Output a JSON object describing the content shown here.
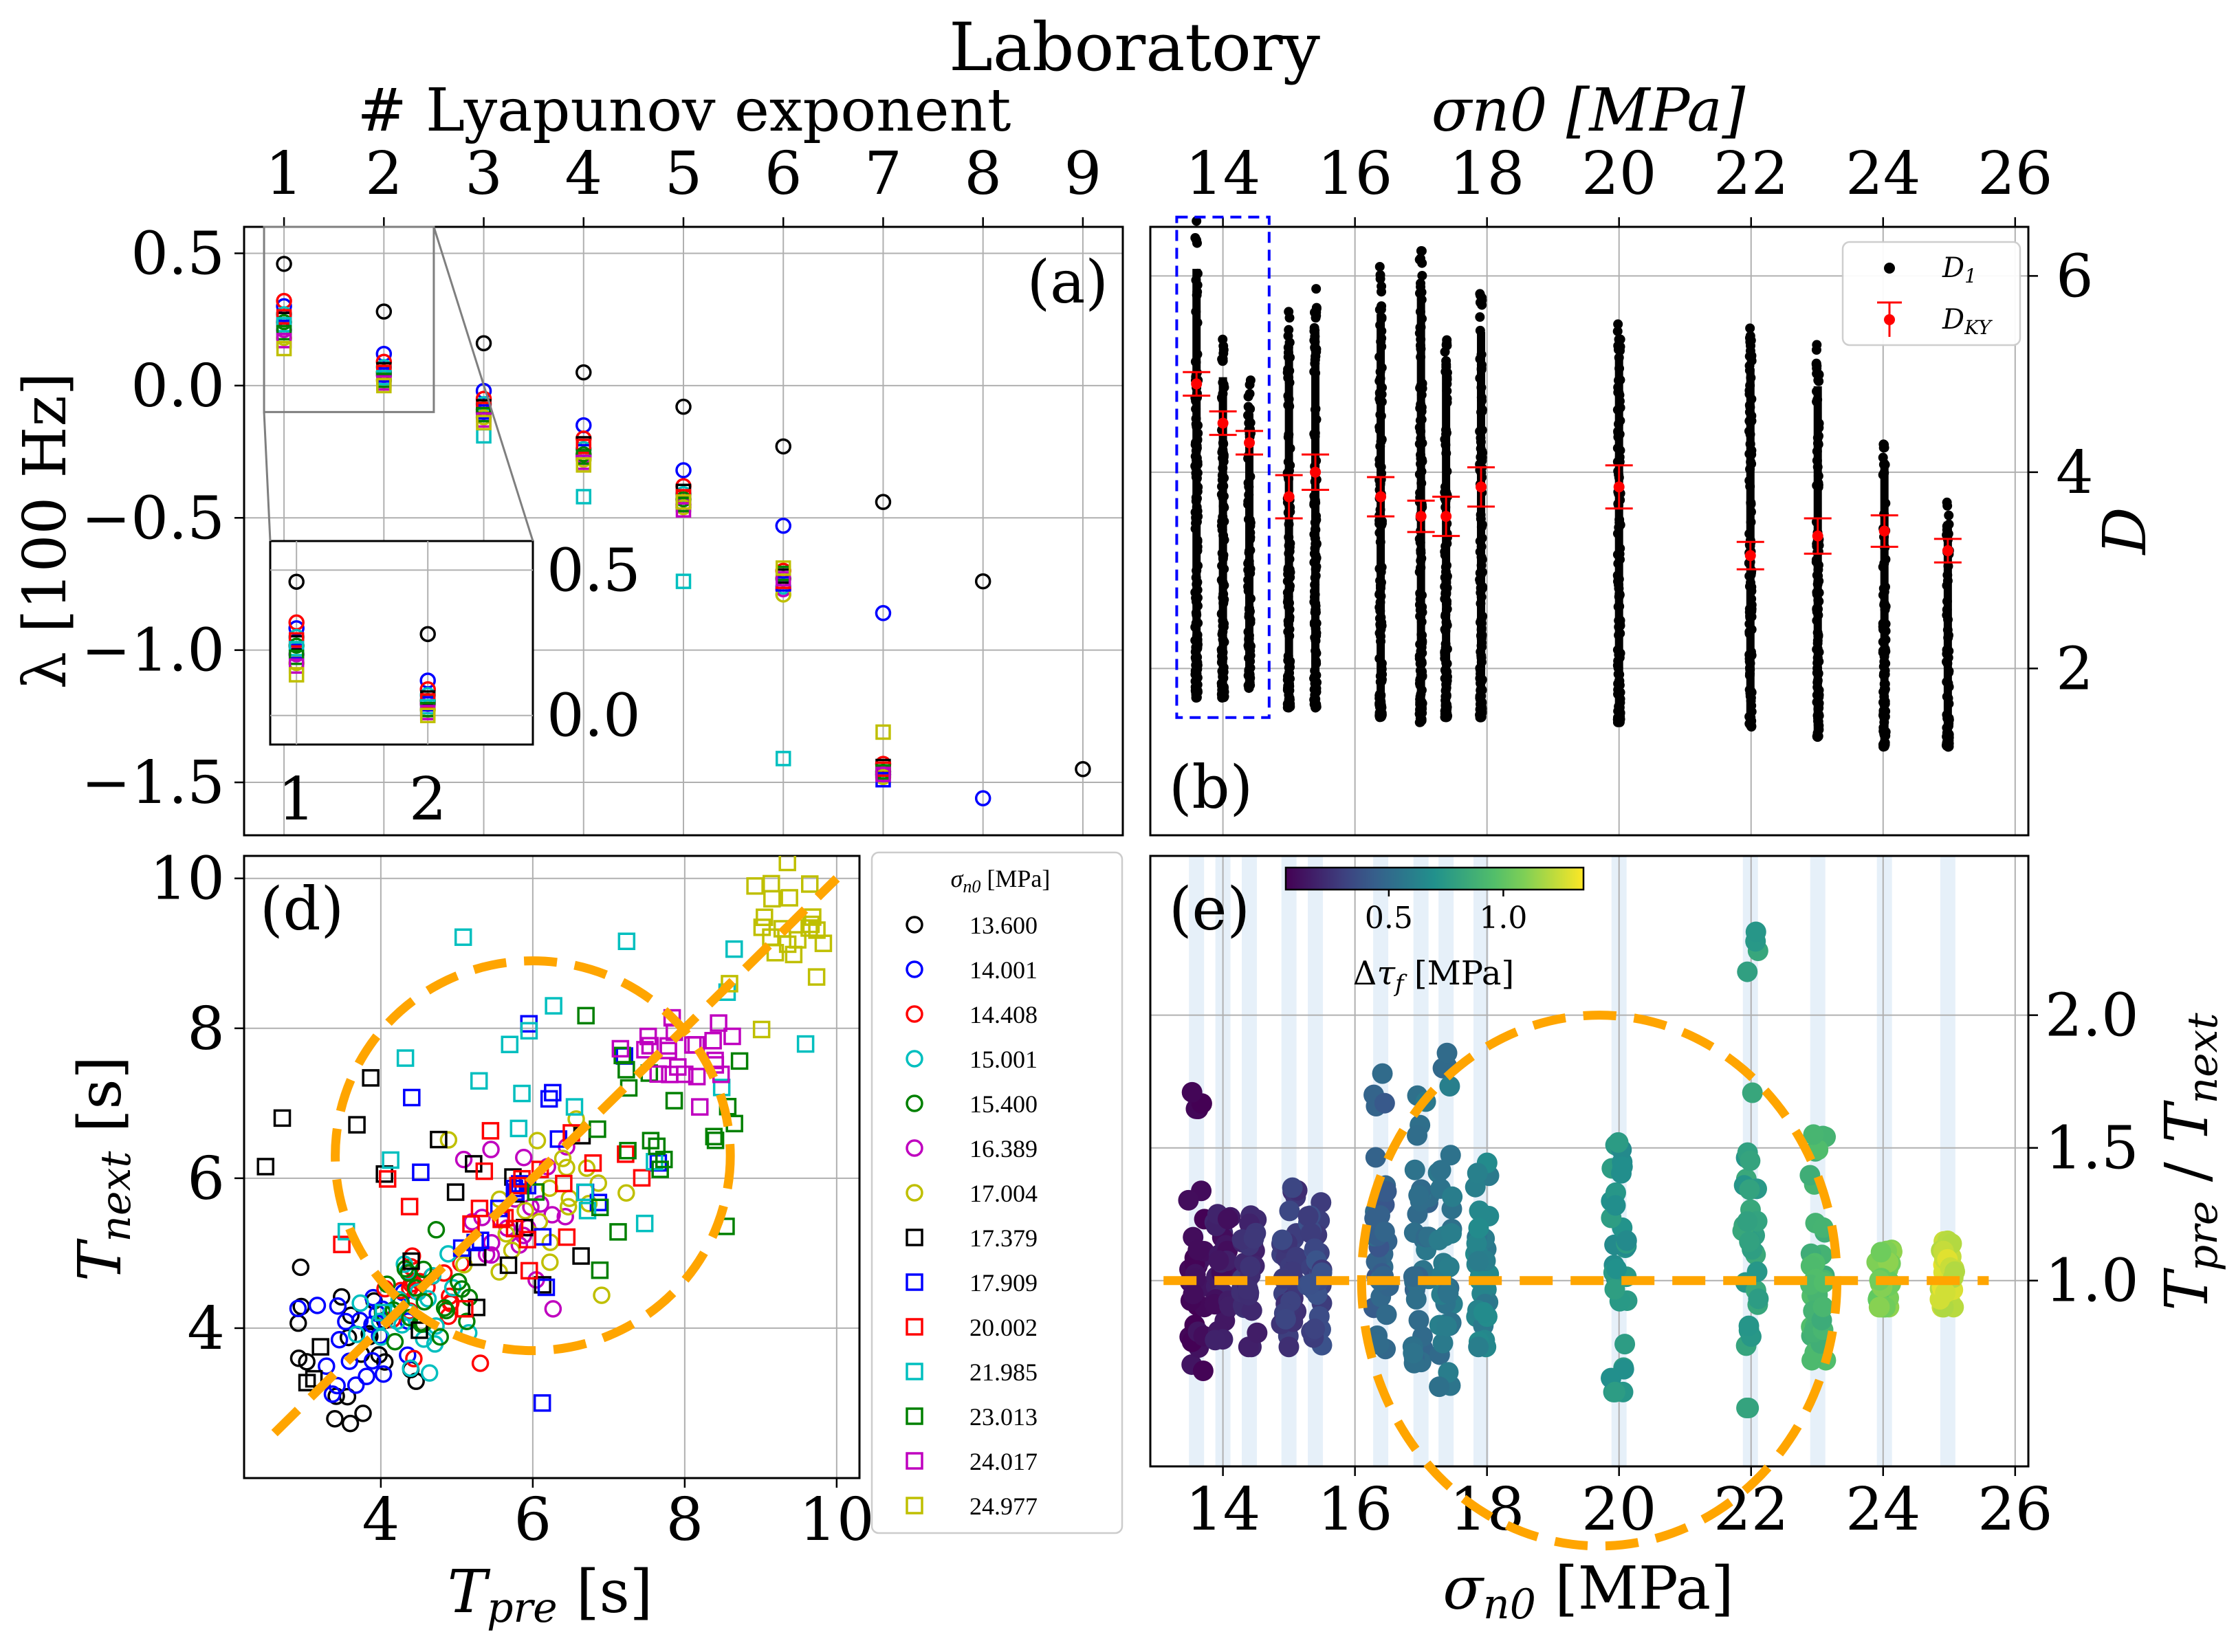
{
  "title": "Laboratory",
  "chart_data": [
    {
      "panel": "(a)",
      "type": "scatter",
      "xlabel": "# Lyapunov exponent",
      "ylabel": "λ [100 Hz]",
      "xticks": [
        "1",
        "2",
        "3",
        "4",
        "5",
        "6",
        "7",
        "8",
        "9"
      ],
      "yticks": [
        "0.5",
        "0.0",
        "−0.5",
        "−1.0",
        "−1.5"
      ],
      "xlim": [
        0.6,
        9.4
      ],
      "ylim": [
        -1.7,
        0.6
      ],
      "grid": true,
      "series": [
        {
          "marker": "circle",
          "color": "#000000",
          "values": [
            0.46,
            0.28,
            0.16,
            0.05,
            -0.08,
            -0.23,
            -0.44,
            -0.74,
            -1.45
          ]
        },
        {
          "marker": "circle",
          "color": "#0000ff",
          "values": [
            0.3,
            0.12,
            -0.02,
            -0.15,
            -0.32,
            -0.53,
            -0.86,
            -1.56
          ]
        },
        {
          "marker": "circle",
          "color": "#ff0000",
          "values": [
            0.32,
            0.09,
            -0.05,
            -0.2,
            -0.38,
            -0.7,
            -1.43
          ]
        },
        {
          "marker": "circle",
          "color": "#00bfbf",
          "values": [
            0.27,
            0.07,
            -0.07,
            -0.24,
            -0.41,
            -0.76,
            -1.47
          ]
        },
        {
          "marker": "circle",
          "color": "#008000",
          "values": [
            0.24,
            0.05,
            -0.09,
            -0.26,
            -0.43,
            -0.73,
            -1.46
          ]
        },
        {
          "marker": "circle",
          "color": "#bf00bf",
          "values": [
            0.21,
            0.04,
            -0.1,
            -0.27,
            -0.45,
            -0.77,
            -1.47
          ]
        },
        {
          "marker": "circle",
          "color": "#bfbf00",
          "values": [
            0.18,
            0.02,
            -0.12,
            -0.28,
            -0.46,
            -0.79,
            -1.48
          ]
        },
        {
          "marker": "square",
          "color": "#000000",
          "values": [
            0.25,
            0.06,
            -0.08,
            -0.22,
            -0.4,
            -0.72,
            -1.44
          ]
        },
        {
          "marker": "square",
          "color": "#0000ff",
          "values": [
            0.22,
            0.04,
            -0.1,
            -0.25,
            -0.44,
            -0.75,
            -1.49
          ]
        },
        {
          "marker": "square",
          "color": "#ff0000",
          "values": [
            0.26,
            0.05,
            -0.09,
            -0.23,
            -0.42,
            -0.74,
            -1.45
          ]
        },
        {
          "marker": "square",
          "color": "#00bfbf",
          "values": [
            0.23,
            0.03,
            -0.19,
            -0.42,
            -0.74,
            -1.41
          ]
        },
        {
          "marker": "square",
          "color": "#008000",
          "values": [
            0.2,
            0.02,
            -0.11,
            -0.27,
            -0.45,
            -0.71,
            -1.46
          ]
        },
        {
          "marker": "square",
          "color": "#bf00bf",
          "values": [
            0.17,
            0.01,
            -0.13,
            -0.29,
            -0.47,
            -0.73,
            -1.47
          ]
        },
        {
          "marker": "square",
          "color": "#bfbf00",
          "values": [
            0.14,
            0.0,
            -0.14,
            -0.3,
            -0.44,
            -0.69,
            -1.31
          ]
        }
      ],
      "inset": {
        "xticks": [
          "1",
          "2"
        ],
        "yticks": [
          "0.5",
          "0.0"
        ],
        "xlim": [
          0.8,
          2.8
        ],
        "ylim": [
          -0.1,
          0.6
        ]
      },
      "label": "(a)"
    },
    {
      "panel": "(b)",
      "type": "scatter",
      "xlabel": "σn0 [MPa]",
      "ylabel": "D",
      "xticks": [
        "14",
        "16",
        "18",
        "20",
        "22",
        "24",
        "26"
      ],
      "yticks": [
        "2",
        "4",
        "6"
      ],
      "xlim": [
        12.9,
        26.2
      ],
      "ylim": [
        0.3,
        6.5
      ],
      "grid": true,
      "legend": {
        "placement": "top-right",
        "entries": [
          {
            "label": "D1",
            "style": "dot"
          },
          {
            "label": "DKY",
            "style": "errorbar"
          }
        ]
      },
      "D1_columns": [
        {
          "x": 13.6,
          "ymin": 1.7,
          "ymax": 6.6
        },
        {
          "x": 14.0,
          "ymin": 1.7,
          "ymax": 5.4
        },
        {
          "x": 14.4,
          "ymin": 1.8,
          "ymax": 5.0
        },
        {
          "x": 15.0,
          "ymin": 1.6,
          "ymax": 5.8
        },
        {
          "x": 15.4,
          "ymin": 1.6,
          "ymax": 5.9
        },
        {
          "x": 16.39,
          "ymin": 1.5,
          "ymax": 6.1
        },
        {
          "x": 17.0,
          "ymin": 1.45,
          "ymax": 6.3
        },
        {
          "x": 17.38,
          "ymin": 1.5,
          "ymax": 5.5
        },
        {
          "x": 17.91,
          "ymin": 1.5,
          "ymax": 5.9
        },
        {
          "x": 20.0,
          "ymin": 1.45,
          "ymax": 5.6
        },
        {
          "x": 21.99,
          "ymin": 1.4,
          "ymax": 5.5
        },
        {
          "x": 23.01,
          "ymin": 1.3,
          "ymax": 5.3
        },
        {
          "x": 24.02,
          "ymin": 1.2,
          "ymax": 4.4
        },
        {
          "x": 24.98,
          "ymin": 1.2,
          "ymax": 3.8
        }
      ],
      "DKY": [
        {
          "x": 13.6,
          "y": 4.9,
          "err": 0.12
        },
        {
          "x": 14.0,
          "y": 4.5,
          "err": 0.12
        },
        {
          "x": 14.4,
          "y": 4.3,
          "err": 0.12
        },
        {
          "x": 15.0,
          "y": 3.75,
          "err": 0.22
        },
        {
          "x": 15.4,
          "y": 4.0,
          "err": 0.18
        },
        {
          "x": 16.39,
          "y": 3.75,
          "err": 0.2
        },
        {
          "x": 17.0,
          "y": 3.55,
          "err": 0.16
        },
        {
          "x": 17.38,
          "y": 3.55,
          "err": 0.2
        },
        {
          "x": 17.91,
          "y": 3.85,
          "err": 0.2
        },
        {
          "x": 20.0,
          "y": 3.85,
          "err": 0.22
        },
        {
          "x": 21.99,
          "y": 3.15,
          "err": 0.14
        },
        {
          "x": 23.01,
          "y": 3.35,
          "err": 0.18
        },
        {
          "x": 24.02,
          "y": 3.4,
          "err": 0.16
        },
        {
          "x": 24.98,
          "y": 3.2,
          "err": 0.12
        }
      ],
      "highlight_box": {
        "x0": 13.3,
        "x1": 14.7,
        "y0": 1.5,
        "y1": 6.6
      },
      "label": "(b)"
    },
    {
      "panel": "(d)",
      "type": "scatter",
      "xlabel": "Tpre [s]",
      "ylabel": "Tnext [s]",
      "xticks": [
        "4",
        "6",
        "8",
        "10"
      ],
      "yticks": [
        "4",
        "6",
        "8",
        "10"
      ],
      "xlim": [
        2.2,
        10.3
      ],
      "ylim": [
        2.0,
        10.3
      ],
      "grid": true,
      "legend_title": "σn0 [MPa]",
      "legend": [
        {
          "label": "13.600",
          "marker": "circle",
          "color": "#000000",
          "cx": 3.6,
          "cy": 3.7,
          "sx": 0.45,
          "sy": 0.5
        },
        {
          "label": "14.001",
          "marker": "circle",
          "color": "#0000ff",
          "cx": 3.8,
          "cy": 3.8,
          "sx": 0.4,
          "sy": 0.35
        },
        {
          "label": "14.408",
          "marker": "circle",
          "color": "#ff0000",
          "cx": 4.5,
          "cy": 4.4,
          "sx": 0.4,
          "sy": 0.4
        },
        {
          "label": "15.001",
          "marker": "circle",
          "color": "#00bfbf",
          "cx": 4.3,
          "cy": 4.3,
          "sx": 0.4,
          "sy": 0.4
        },
        {
          "label": "15.400",
          "marker": "circle",
          "color": "#008000",
          "cx": 4.4,
          "cy": 4.4,
          "sx": 0.4,
          "sy": 0.4
        },
        {
          "label": "16.389",
          "marker": "circle",
          "color": "#bf00bf",
          "cx": 5.9,
          "cy": 5.6,
          "sx": 0.5,
          "sy": 0.6
        },
        {
          "label": "17.004",
          "marker": "circle",
          "color": "#bfbf00",
          "cx": 6.2,
          "cy": 5.5,
          "sx": 0.5,
          "sy": 0.6
        },
        {
          "label": "17.379",
          "marker": "square",
          "color": "#000000",
          "cx": 4.8,
          "cy": 5.6,
          "sx": 1.1,
          "sy": 1.2
        },
        {
          "label": "17.909",
          "marker": "square",
          "color": "#0000ff",
          "cx": 5.9,
          "cy": 5.7,
          "sx": 0.8,
          "sy": 0.9
        },
        {
          "label": "20.002",
          "marker": "square",
          "color": "#ff0000",
          "cx": 6.0,
          "cy": 5.8,
          "sx": 0.8,
          "sy": 0.9
        },
        {
          "label": "21.985",
          "marker": "square",
          "color": "#00bfbf",
          "cx": 6.0,
          "cy": 6.6,
          "sx": 1.6,
          "sy": 1.5
        },
        {
          "label": "23.013",
          "marker": "square",
          "color": "#008000",
          "cx": 7.3,
          "cy": 7.0,
          "sx": 0.9,
          "sy": 1.0
        },
        {
          "label": "24.017",
          "marker": "square",
          "color": "#bf00bf",
          "cx": 8.0,
          "cy": 7.8,
          "sx": 0.3,
          "sy": 0.3
        },
        {
          "label": "24.977",
          "marker": "square",
          "color": "#bfbf00",
          "cx": 9.3,
          "cy": 9.3,
          "sx": 0.35,
          "sy": 0.35
        }
      ],
      "annotations": {
        "line": "y = x (dashed orange)",
        "circle_center": [
          6.0,
          6.3
        ],
        "circle_radius": 2.6
      },
      "label": "(d)"
    },
    {
      "panel": "(e)",
      "type": "scatter",
      "xlabel": "σn0 [MPa]",
      "ylabel": "Tpre / Tnext",
      "xticks": [
        "14",
        "16",
        "18",
        "20",
        "22",
        "24",
        "26"
      ],
      "yticks": [
        "1.0",
        "1.5",
        "2.0"
      ],
      "xlim": [
        12.9,
        26.2
      ],
      "ylim": [
        0.3,
        2.6
      ],
      "grid": true,
      "colorbar": {
        "label": "Δτf [MPa]",
        "ticks": [
          "0.5",
          "1.0"
        ],
        "range": [
          0.05,
          1.35
        ],
        "colormap": "viridis"
      },
      "columns": [
        {
          "x": 13.6,
          "ymin": 0.66,
          "ymax": 1.73,
          "c": 0.08
        },
        {
          "x": 14.0,
          "ymin": 0.75,
          "ymax": 1.25,
          "c": 0.15
        },
        {
          "x": 14.4,
          "ymin": 0.75,
          "ymax": 1.25,
          "c": 0.22
        },
        {
          "x": 15.0,
          "ymin": 0.75,
          "ymax": 1.35,
          "c": 0.28
        },
        {
          "x": 15.4,
          "ymin": 0.75,
          "ymax": 1.3,
          "c": 0.33
        },
        {
          "x": 16.39,
          "ymin": 0.7,
          "ymax": 1.8,
          "c": 0.45
        },
        {
          "x": 17.0,
          "ymin": 0.62,
          "ymax": 1.7,
          "c": 0.52
        },
        {
          "x": 17.38,
          "ymin": 0.6,
          "ymax": 1.9,
          "c": 0.55
        },
        {
          "x": 17.91,
          "ymin": 0.75,
          "ymax": 1.45,
          "c": 0.62
        },
        {
          "x": 20.0,
          "ymin": 0.58,
          "ymax": 1.55,
          "c": 0.72
        },
        {
          "x": 21.99,
          "ymin": 0.52,
          "ymax": 2.45,
          "c": 0.78
        },
        {
          "x": 23.01,
          "ymin": 0.7,
          "ymax": 1.55,
          "c": 0.9
        },
        {
          "x": 24.02,
          "ymin": 0.9,
          "ymax": 1.12,
          "c": 1.08
        },
        {
          "x": 24.98,
          "ymin": 0.9,
          "ymax": 1.15,
          "c": 1.25
        }
      ],
      "annotations": {
        "line": "y = 1 (dashed orange)",
        "circle_center": [
          19.7,
          1.0
        ],
        "circle_radius_x": 3.6,
        "circle_radius_y": 1.0
      },
      "label": "(e)"
    }
  ]
}
